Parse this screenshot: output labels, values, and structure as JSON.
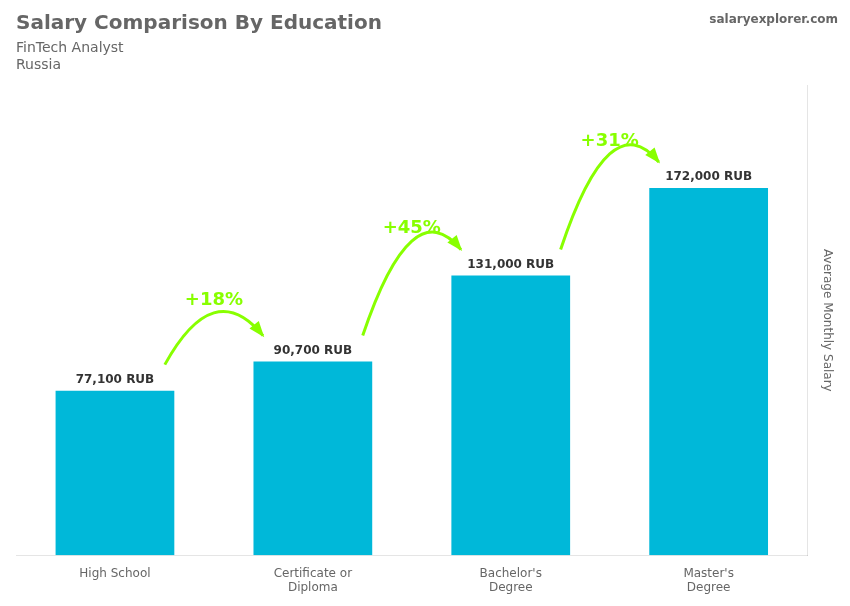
{
  "chart_data": {
    "type": "bar",
    "title": "Salary Comparison By Education",
    "subtitle": [
      "FinTech Analyst",
      "Russia"
    ],
    "watermark": "salaryexplorer.com",
    "ylabel": "Average Monthly Salary",
    "categories": [
      "High School",
      "Certificate or\nDiploma",
      "Bachelor's\nDegree",
      "Master's\nDegree"
    ],
    "values": [
      77100,
      90700,
      131000,
      172000
    ],
    "value_labels": [
      "77,100 RUB",
      "90,700 RUB",
      "131,000 RUB",
      "172,000 RUB"
    ],
    "data_labels": true,
    "color": "#00b8d9",
    "annotations": [
      {
        "text": "+18%",
        "color": "#88ff00"
      },
      {
        "text": "+45%",
        "color": "#88ff00"
      },
      {
        "text": "+31%",
        "color": "#88ff00"
      }
    ],
    "ylim": [
      0,
      220000
    ],
    "yticks": [],
    "tick_labels": "x",
    "grid": false
  }
}
